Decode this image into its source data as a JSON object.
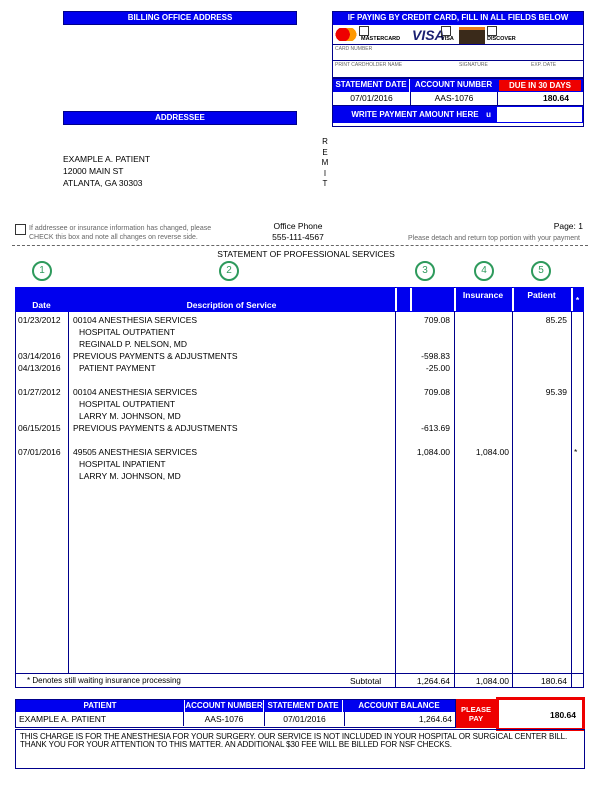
{
  "billing_office_label": "BILLING OFFICE ADDRESS",
  "addressee_label": "ADDRESSEE",
  "credit_card": {
    "title": "IF PAYING BY CREDIT CARD, FILL IN ALL FIELDS BELOW",
    "cards": [
      {
        "name": "MASTERCARD",
        "logo": "mastercard-logo"
      },
      {
        "name": "VISA",
        "logo": "visa-logo"
      },
      {
        "name": "DISCOVER",
        "logo": "discover-logo"
      }
    ],
    "card_number_label": "CARD NUMBER",
    "cardholder_label": "PRINT CARDHOLDER NAME",
    "signature_label": "SIGNATURE",
    "exp_label": "EXP. DATE",
    "statement_date_label": "STATEMENT DATE",
    "account_number_label": "ACCOUNT NUMBER",
    "due_label": "DUE IN 30 DAYS",
    "statement_date": "07/01/2016",
    "account_number": "AAS-1076",
    "due_amount": "180.64",
    "write_payment_label": "WRITE PAYMENT AMOUNT HERE",
    "arrow_glyph": "u"
  },
  "remit": [
    "R",
    "E",
    "M",
    "I",
    "T"
  ],
  "address": [
    "EXAMPLE A. PATIENT",
    "12000 MAIN ST",
    "ATLANTA, GA 30303"
  ],
  "change_notice": [
    "If addressee or insurance information has changed, please",
    "CHECK this box and note all changes on reverse side."
  ],
  "office_phone_label": "Office Phone",
  "office_phone": "555-111-4567",
  "page_label": "Page: 1",
  "detach_note": "Please detach and return top portion with your payment",
  "statement_title": "STATEMENT OF PROFESSIONAL SERVICES",
  "markers": [
    "1",
    "2",
    "3",
    "4",
    "5"
  ],
  "table": {
    "headers": {
      "date": "Date",
      "description": "Description of Service",
      "amount": "",
      "insurance": "Insurance",
      "patient": "Patient",
      "star": "*"
    },
    "lines": [
      {
        "date": "01/23/2012",
        "desc": "00104 ANESTHESIA SERVICES",
        "indent": false,
        "amount": "709.08",
        "insurance": "",
        "patient": "85.25",
        "star": ""
      },
      {
        "date": "",
        "desc": "HOSPITAL OUTPATIENT",
        "indent": true,
        "amount": "",
        "insurance": "",
        "patient": "",
        "star": ""
      },
      {
        "date": "",
        "desc": "REGINALD P. NELSON, MD",
        "indent": true,
        "amount": "",
        "insurance": "",
        "patient": "",
        "star": ""
      },
      {
        "date": "03/14/2016",
        "desc": "PREVIOUS PAYMENTS & ADJUSTMENTS",
        "indent": false,
        "amount": "-598.83",
        "insurance": "",
        "patient": "",
        "star": ""
      },
      {
        "date": "04/13/2016",
        "desc": "PATIENT PAYMENT",
        "indent": true,
        "amount": "-25.00",
        "insurance": "",
        "patient": "",
        "star": ""
      },
      {
        "date": "",
        "desc": "",
        "indent": false,
        "amount": "",
        "insurance": "",
        "patient": "",
        "star": ""
      },
      {
        "date": "01/27/2012",
        "desc": "00104 ANESTHESIA SERVICES",
        "indent": false,
        "amount": "709.08",
        "insurance": "",
        "patient": "95.39",
        "star": ""
      },
      {
        "date": "",
        "desc": "HOSPITAL OUTPATIENT",
        "indent": true,
        "amount": "",
        "insurance": "",
        "patient": "",
        "star": ""
      },
      {
        "date": "",
        "desc": "LARRY M. JOHNSON, MD",
        "indent": true,
        "amount": "",
        "insurance": "",
        "patient": "",
        "star": ""
      },
      {
        "date": "06/15/2015",
        "desc": "PREVIOUS PAYMENTS & ADJUSTMENTS",
        "indent": false,
        "amount": "-613.69",
        "insurance": "",
        "patient": "",
        "star": ""
      },
      {
        "date": "",
        "desc": "",
        "indent": false,
        "amount": "",
        "insurance": "",
        "patient": "",
        "star": ""
      },
      {
        "date": "07/01/2016",
        "desc": "49505 ANESTHESIA SERVICES",
        "indent": false,
        "amount": "1,084.00",
        "insurance": "1,084.00",
        "patient": "",
        "star": "*"
      },
      {
        "date": "",
        "desc": "HOSPITAL INPATIENT",
        "indent": true,
        "amount": "",
        "insurance": "",
        "patient": "",
        "star": ""
      },
      {
        "date": "",
        "desc": "LARRY M. JOHNSON, MD",
        "indent": true,
        "amount": "",
        "insurance": "",
        "patient": "",
        "star": ""
      }
    ],
    "footnote": "* Denotes still waiting insurance processing",
    "subtotal_label": "Subtotal",
    "subtotal_amount": "1,264.64",
    "subtotal_insurance": "1,084.00",
    "subtotal_patient": "180.64"
  },
  "summary": {
    "patient_label": "PATIENT",
    "account_label": "ACCOUNT NUMBER",
    "date_label": "STATEMENT DATE",
    "balance_label": "ACCOUNT BALANCE",
    "patient": "EXAMPLE A. PATIENT",
    "account": "AAS-1076",
    "date": "07/01/2016",
    "balance": "1,264.64",
    "please_pay_label": "PLEASE PAY",
    "please_pay_amount": "180.64"
  },
  "message": "THIS CHARGE IS FOR THE ANESTHESIA FOR YOUR SURGERY.  OUR SERVICE IS NOT INCLUDED IN YOUR HOSPITAL OR SURGICAL CENTER BILL.  THANK YOU FOR YOUR ATTENTION TO THIS MATTER.  AN ADDITIONAL $30 FEE WILL BE BILLED FOR NSF CHECKS.",
  "colors": {
    "blue": "#0000ee",
    "navy": "#00008b",
    "red": "#ee0000",
    "green": "#2e9a5c"
  }
}
